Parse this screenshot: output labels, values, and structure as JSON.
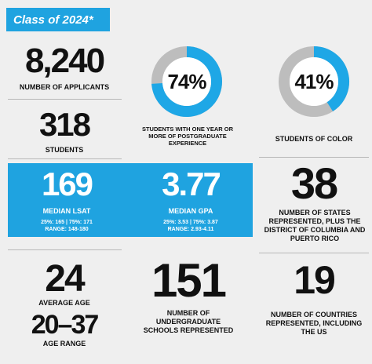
{
  "header": {
    "title": "Class of 2024*"
  },
  "stats": {
    "applicants": {
      "value": "8,240",
      "label": "NUMBER OF APPLICANTS"
    },
    "students": {
      "value": "318",
      "label": "STUDENTS"
    },
    "lsat": {
      "value": "169",
      "label": "MEDIAN LSAT",
      "quartiles": "25%: 165 | 75%: 171",
      "range": "RANGE: 148-180"
    },
    "gpa": {
      "value": "3.77",
      "label": "MEDIAN GPA",
      "quartiles": "25%: 3.53 | 75%: 3.87",
      "range": "RANGE: 2.93-4.11"
    },
    "states": {
      "value": "38",
      "label": "NUMBER OF STATES REPRESENTED, PLUS THE DISTRICT OF COLUMBIA AND PUERTO RICO"
    },
    "age": {
      "value": "24",
      "label": "AVERAGE AGE"
    },
    "age_range": {
      "value": "20–37",
      "label": "AGE RANGE"
    },
    "schools": {
      "value": "151",
      "label": "NUMBER OF UNDERGRADUATE SCHOOLS REPRESENTED"
    },
    "countries": {
      "value": "19",
      "label": "NUMBER OF COUNTRIES REPRESENTED, INCLUDING THE US"
    }
  },
  "donuts": [
    {
      "value": 74,
      "label": "74%",
      "caption": "STUDENTS WITH ONE YEAR OR MORE OF POSTGRADUATE EXPERIENCE"
    },
    {
      "value": 41,
      "label": "41%",
      "caption": "STUDENTS OF COLOR"
    }
  ]
}
